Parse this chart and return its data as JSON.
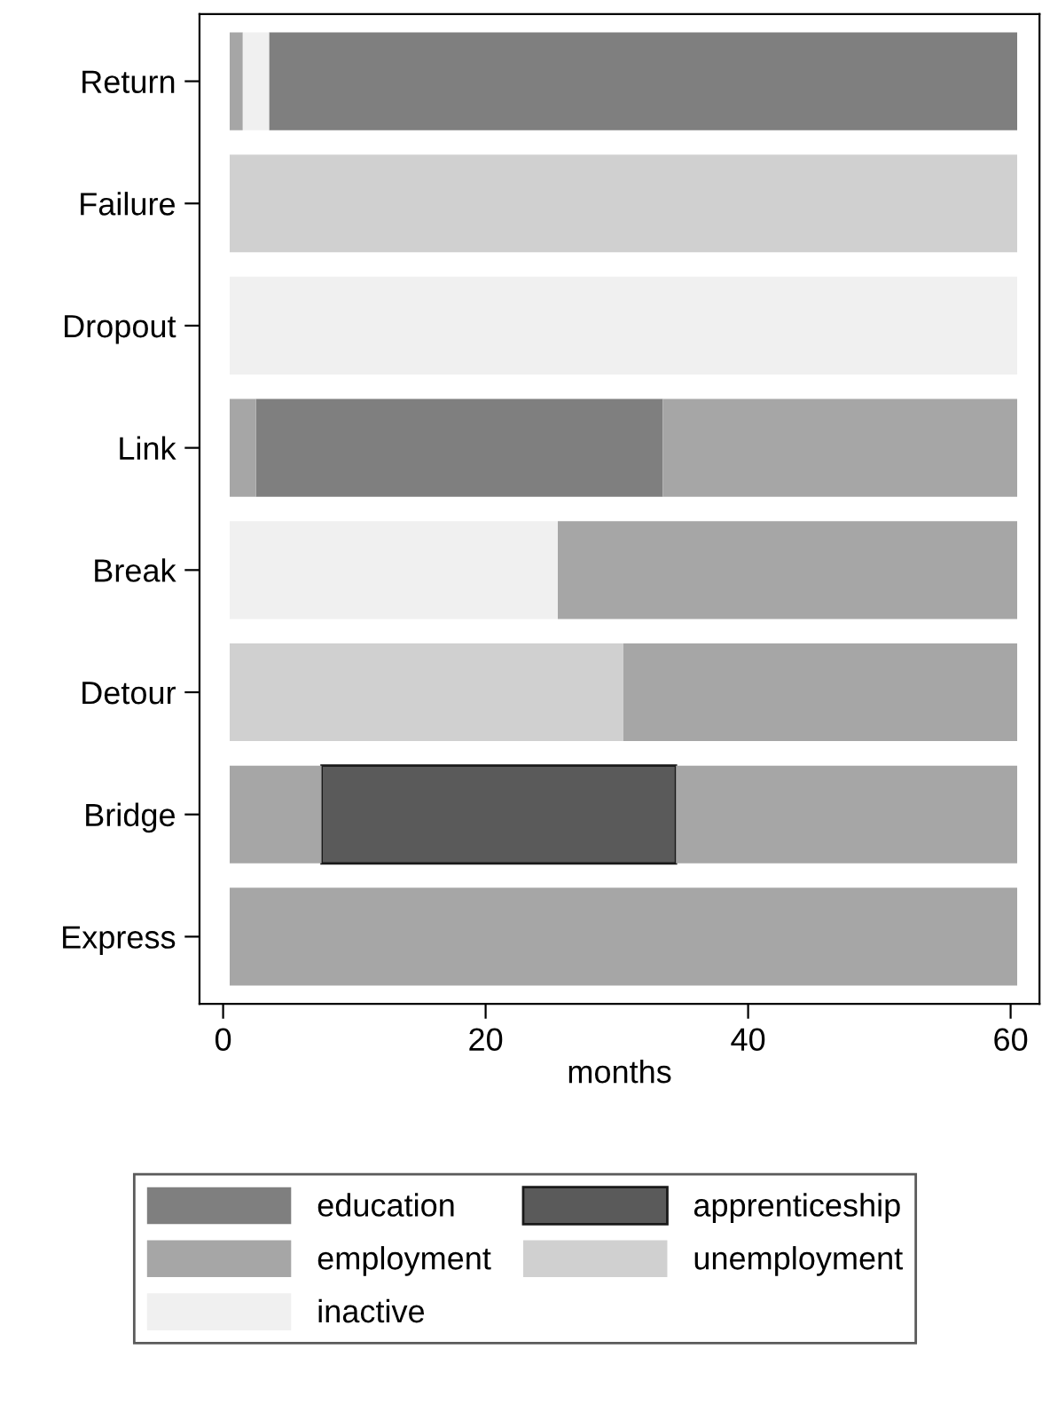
{
  "chart_data": {
    "type": "bar",
    "orientation": "horizontal",
    "xlabel": "months",
    "categories": [
      "Return",
      "Failure",
      "Dropout",
      "Link",
      "Break",
      "Detour",
      "Bridge",
      "Express"
    ],
    "xlim": [
      -1.8,
      62.2
    ],
    "xticks": [
      0,
      20,
      40,
      60
    ],
    "grid": false,
    "legend": "bottom",
    "series": [
      {
        "name": "education",
        "color": "#7f7f7f",
        "base": [
          3.5,
          null,
          null,
          2.5,
          null,
          null,
          null,
          null
        ],
        "values": [
          57,
          null,
          null,
          31,
          null,
          null,
          null,
          null
        ]
      },
      {
        "name": "apprenticeship",
        "color": "#5a5a5a",
        "base": [
          null,
          null,
          null,
          null,
          null,
          null,
          7.5,
          null
        ],
        "values": [
          null,
          null,
          null,
          null,
          null,
          null,
          27,
          null
        ]
      },
      {
        "name": "employment",
        "color": "#a6a6a6",
        "base": [
          0.5,
          null,
          null,
          33.5,
          25.5,
          30.5,
          0.5,
          0.5
        ],
        "values": [
          1,
          null,
          null,
          27,
          35,
          30,
          7,
          60
        ]
      },
      {
        "name": "unemployment",
        "color": "#d0d0d0",
        "base": [
          null,
          0.5,
          null,
          null,
          null,
          0.5,
          null,
          null
        ],
        "values": [
          null,
          60,
          null,
          null,
          null,
          30,
          null,
          null
        ]
      },
      {
        "name": "inactive",
        "color": "#f0f0f0",
        "base": [
          1.5,
          null,
          0.5,
          null,
          0.5,
          null,
          null,
          null
        ],
        "values": [
          2,
          null,
          60,
          null,
          25,
          null,
          null,
          null
        ]
      },
      {
        "color": "#a6a6a6",
        "base": [
          null,
          null,
          null,
          0.5,
          null,
          null,
          34.5,
          null
        ],
        "values": [
          null,
          null,
          null,
          2,
          null,
          null,
          26,
          null
        ]
      }
    ]
  }
}
